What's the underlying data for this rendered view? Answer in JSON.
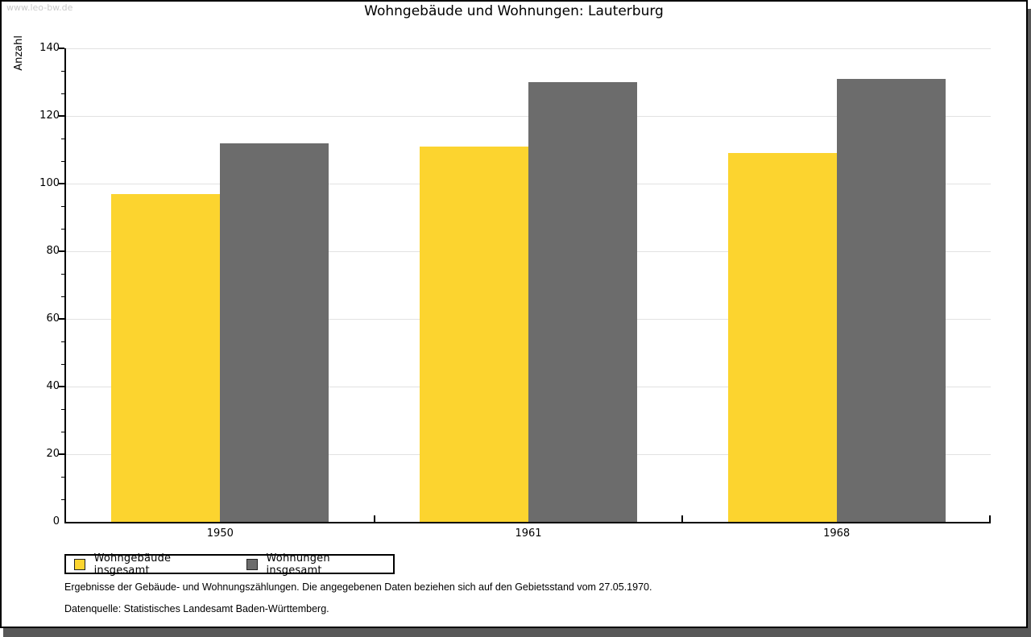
{
  "watermark": "www.leo-bw.de",
  "title": "Wohngebäude und Wohnungen: Lauterburg",
  "chart_data": {
    "type": "bar",
    "categories": [
      "1950",
      "1961",
      "1968"
    ],
    "series": [
      {
        "name": "Wohngebäude insgesamt",
        "color": "#FCD42F",
        "values": [
          97,
          111,
          109
        ]
      },
      {
        "name": "Wohnungen insgesamt",
        "color": "#6C6C6C",
        "values": [
          112,
          130,
          131
        ]
      }
    ],
    "title": "Wohngebäude und Wohnungen: Lauterburg",
    "xlabel": "",
    "ylabel": "Anzahl",
    "ylim": [
      0,
      140
    ],
    "ytick_step": 20,
    "yminor_per_major": 3,
    "grid": "horizontal",
    "legend_position": "bottom-left"
  },
  "footer": {
    "line1": "Ergebnisse der Gebäude- und Wohnungszählungen. Die angegebenen Daten beziehen sich auf den Gebietsstand vom 27.05.1970.",
    "line2": "Datenquelle: Statistisches Landesamt Baden-Württemberg."
  },
  "colors": {
    "frame_border": "#000000",
    "frame_shadow": "#585858",
    "gridline": "#E2E2E2",
    "watermark": "#C9C9C9"
  }
}
